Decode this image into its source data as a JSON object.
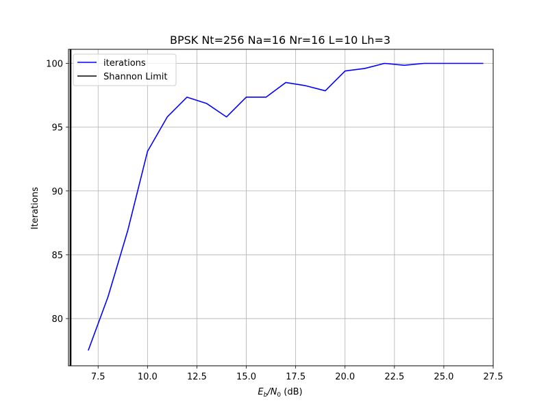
{
  "chart_data": {
    "type": "line",
    "title": "BPSK Nt=256 Na=16 Nr=16 L=10 Lh=3",
    "xlabel_main": "E",
    "xlabel_sub": "b",
    "xlabel_slash": "/N",
    "xlabel_sub2": "0",
    "xlabel_unit": " (dB)",
    "ylabel": "Iterations",
    "xlim": [
      6.0,
      27.5
    ],
    "ylim": [
      76.3,
      101.1
    ],
    "xticks": [
      7.5,
      10.0,
      12.5,
      15.0,
      17.5,
      20.0,
      22.5,
      25.0,
      27.5
    ],
    "xtick_labels": [
      "7.5",
      "10.0",
      "12.5",
      "15.0",
      "17.5",
      "20.0",
      "22.5",
      "25.0",
      "27.5"
    ],
    "yticks": [
      80,
      85,
      90,
      95,
      100
    ],
    "ytick_labels": [
      "80",
      "85",
      "90",
      "95",
      "100"
    ],
    "grid": true,
    "legend_position": "top-left",
    "series": [
      {
        "name": "iterations",
        "color": "#0000ff",
        "x": [
          7,
          8,
          9,
          10,
          11,
          12,
          13,
          14,
          15,
          16,
          17,
          18,
          19,
          20,
          21,
          22,
          23,
          24,
          25,
          26,
          27
        ],
        "y": [
          77.5,
          81.7,
          86.9,
          93.1,
          95.8,
          97.35,
          96.85,
          95.8,
          97.35,
          97.35,
          98.5,
          98.25,
          97.85,
          99.4,
          99.6,
          100.0,
          99.85,
          100.0,
          100.0,
          100.0,
          100.0
        ]
      },
      {
        "name": "Shannon Limit",
        "color": "#000000",
        "vline_x": 6.0
      }
    ]
  }
}
